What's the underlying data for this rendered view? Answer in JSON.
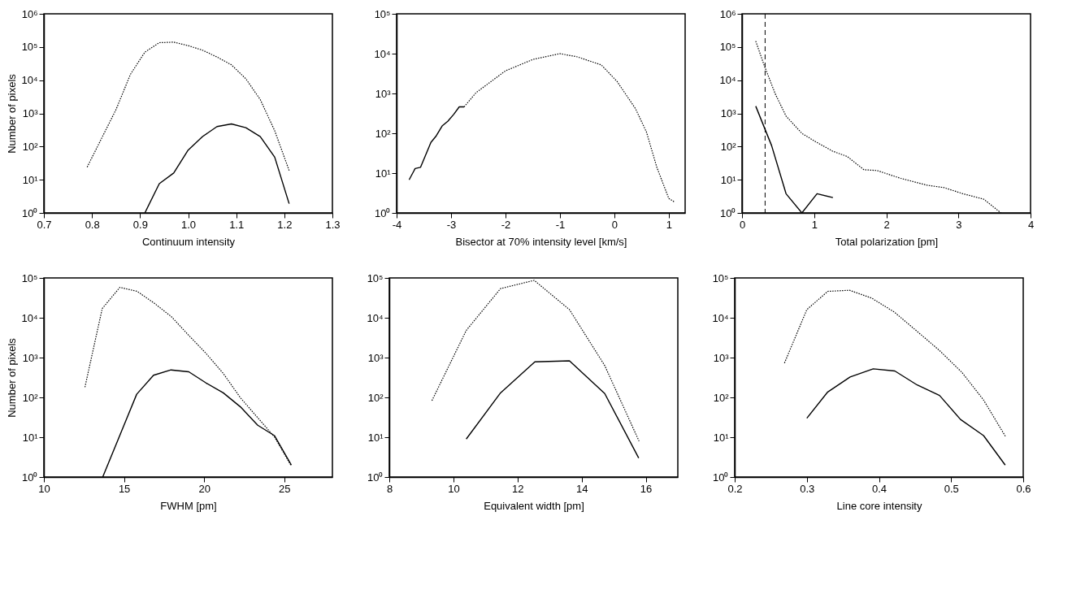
{
  "chart_data": [
    {
      "type": "line",
      "xlabel": "Continuum intensity",
      "ylabel": "Number of pixels",
      "log": "y",
      "xlim": [
        0.7,
        1.3
      ],
      "xticks": [
        0.7,
        0.8,
        0.9,
        {
          "value": 1.0,
          "label": "1.0"
        },
        1.1,
        1.2,
        1.3
      ],
      "ylim": [
        1,
        1000000
      ],
      "yticks": [
        {
          "value": 1,
          "label": "10⁰"
        },
        {
          "value": 10,
          "label": "10¹"
        },
        {
          "value": 100,
          "label": "10²"
        },
        {
          "value": 1000,
          "label": "10³"
        },
        {
          "value": 10000,
          "label": "10⁴"
        },
        {
          "value": 100000,
          "label": "10⁵"
        },
        {
          "value": 1000000,
          "label": "10⁶"
        }
      ],
      "series": [
        {
          "color": "#000000",
          "line_style": "dotted",
          "x": [
            0.79,
            0.85,
            0.88,
            0.91,
            0.94,
            0.97,
            1.0,
            1.03,
            1.06,
            1.09,
            1.12,
            1.15,
            1.18,
            1.21
          ],
          "values": [
            24,
            1300,
            15000,
            70000,
            135000,
            140000,
            110000,
            80000,
            50000,
            29000,
            11000,
            2600,
            300,
            19
          ]
        },
        {
          "color": "#000000",
          "line_style": "solid",
          "x": [
            0.91,
            0.94,
            0.97,
            1.0,
            1.03,
            1.06,
            1.09,
            1.12,
            1.15,
            1.18,
            1.21
          ],
          "values": [
            1,
            7.6,
            16,
            78,
            200,
            400,
            480,
            370,
            200,
            48,
            1.9
          ]
        }
      ]
    },
    {
      "type": "line",
      "xlabel": "Bisector at 70% intensity level [km/s]",
      "log": "y",
      "tick_labels": true,
      "xlim": [
        -4,
        1.3
      ],
      "xticks": [
        -4,
        -3,
        -2,
        -1,
        0,
        1
      ],
      "ylim": [
        1,
        100000
      ],
      "yticks": [
        {
          "value": 1,
          "label": "10⁰"
        },
        {
          "value": 10,
          "label": "10¹"
        },
        {
          "value": 100,
          "label": "10²"
        },
        {
          "value": 1000,
          "label": "10³"
        },
        {
          "value": 10000,
          "label": "10⁴"
        },
        {
          "value": 100000,
          "label": "10⁵"
        }
      ],
      "series": [
        {
          "color": "#000000",
          "line_style": "dotted",
          "x": [
            -2.76,
            -2.54,
            -2.0,
            -1.49,
            -1.0,
            -0.68,
            -0.24,
            0.05,
            0.39,
            0.59,
            0.78,
            1.0,
            1.1
          ],
          "values": [
            460,
            1050,
            3700,
            7200,
            10000,
            8300,
            5200,
            2000,
            410,
            107,
            14,
            2.3,
            1.9
          ]
        },
        {
          "color": "#000000",
          "line_style": "solid",
          "x": [
            -3.77,
            -3.66,
            -3.56,
            -3.37,
            -3.27,
            -3.16,
            -3.06,
            -2.95,
            -2.85,
            -2.76
          ],
          "values": [
            6.8,
            13,
            14,
            59,
            87,
            155,
            200,
            300,
            460,
            460
          ]
        }
      ]
    },
    {
      "type": "line",
      "xlabel": "Total polarization [pm]",
      "log": "y",
      "xlim": [
        0,
        4
      ],
      "xticks": [
        0,
        1,
        2,
        3,
        4
      ],
      "ylim": [
        1,
        1000000
      ],
      "yticks": [
        {
          "value": 1,
          "label": "10⁰"
        },
        {
          "value": 10,
          "label": "10¹"
        },
        {
          "value": 100,
          "label": "10²"
        },
        {
          "value": 1000,
          "label": "10³"
        },
        {
          "value": 10000,
          "label": "10⁴"
        },
        {
          "value": 100000,
          "label": "10⁵"
        },
        {
          "value": 1000000,
          "label": "10⁶"
        }
      ],
      "ref_lines": [
        {
          "axis": "x",
          "value": 0.32,
          "color": "#000000",
          "line_style": "dashed"
        }
      ],
      "series": [
        {
          "color": "#000000",
          "line_style": "dotted",
          "x": [
            0.19,
            0.31,
            0.46,
            0.61,
            0.83,
            1.02,
            1.26,
            1.46,
            1.69,
            1.87,
            2.2,
            2.57,
            2.8,
            3.06,
            3.35,
            3.59
          ],
          "values": [
            150000,
            27000,
            3900,
            830,
            250,
            140,
            72,
            50,
            20,
            19,
            11,
            6.8,
            5.8,
            3.8,
            2.6,
            1
          ]
        },
        {
          "color": "#000000",
          "line_style": "solid",
          "x": [
            0.19,
            0.41,
            0.61,
            0.83,
            1.04,
            1.26
          ],
          "values": [
            1650,
            107,
            3.8,
            1,
            3.8,
            2.9
          ]
        }
      ]
    },
    {
      "type": "line",
      "xlabel": "FWHM [pm]",
      "ylabel": "Number of pixels",
      "log": "y",
      "xlim": [
        10,
        28
      ],
      "xticks": [
        10,
        15,
        20,
        25
      ],
      "ylim": [
        1,
        100000
      ],
      "yticks": [
        {
          "value": 1,
          "label": "10⁰"
        },
        {
          "value": 10,
          "label": "10¹"
        },
        {
          "value": 100,
          "label": "10²"
        },
        {
          "value": 1000,
          "label": "10³"
        },
        {
          "value": 10000,
          "label": "10⁴"
        },
        {
          "value": 100000,
          "label": "10⁵"
        }
      ],
      "series": [
        {
          "color": "#000000",
          "line_style": "dotted",
          "x": [
            12.56,
            13.64,
            14.74,
            15.82,
            16.9,
            17.97,
            19.04,
            20.12,
            21.19,
            22.26,
            23.4,
            24.4,
            25.4
          ],
          "values": [
            180,
            17000,
            58000,
            46000,
            23000,
            10500,
            3600,
            1270,
            400,
            98,
            29,
            10,
            2
          ]
        },
        {
          "color": "#000000",
          "line_style": "solid",
          "x": [
            13.67,
            14.69,
            15.79,
            16.84,
            17.93,
            19.04,
            20.12,
            21.19,
            22.26,
            23.34,
            24.38,
            25.44
          ],
          "values": [
            1,
            10,
            120,
            360,
            490,
            440,
            230,
            130,
            58,
            20,
            11,
            2
          ]
        }
      ]
    },
    {
      "type": "line",
      "xlabel": "Equivalent width [pm]",
      "log": "y",
      "xlim": [
        8,
        17
      ],
      "xticks": [
        8,
        10,
        12,
        14,
        16
      ],
      "ylim": [
        1,
        100000
      ],
      "yticks": [
        {
          "value": 1,
          "label": "10⁰"
        },
        {
          "value": 10,
          "label": "10¹"
        },
        {
          "value": 100,
          "label": "10²"
        },
        {
          "value": 1000,
          "label": "10³"
        },
        {
          "value": 10000,
          "label": "10⁴"
        },
        {
          "value": 100000,
          "label": "10⁵"
        }
      ],
      "series": [
        {
          "color": "#000000",
          "line_style": "dotted",
          "x": [
            9.33,
            10.4,
            11.47,
            12.52,
            13.62,
            14.72,
            15.79
          ],
          "values": [
            83,
            4800,
            54000,
            87000,
            16000,
            630,
            8
          ]
        },
        {
          "color": "#000000",
          "line_style": "solid",
          "x": [
            10.4,
            11.47,
            12.54,
            13.62,
            14.72,
            15.78
          ],
          "values": [
            9,
            130,
            780,
            830,
            125,
            3
          ]
        }
      ]
    },
    {
      "type": "line",
      "xlabel": "Line core intensity",
      "log": "y",
      "xlim": [
        0.2,
        0.6
      ],
      "xticks": [
        0.2,
        0.3,
        0.4,
        0.5,
        0.6
      ],
      "ylim": [
        1,
        100000
      ],
      "yticks": [
        {
          "value": 1,
          "label": "10⁰"
        },
        {
          "value": 10,
          "label": "10¹"
        },
        {
          "value": 100,
          "label": "10²"
        },
        {
          "value": 1000,
          "label": "10³"
        },
        {
          "value": 10000,
          "label": "10⁴"
        },
        {
          "value": 100000,
          "label": "10⁵"
        }
      ],
      "series": [
        {
          "color": "#000000",
          "line_style": "dotted",
          "x": [
            0.269,
            0.3,
            0.329,
            0.359,
            0.39,
            0.421,
            0.452,
            0.484,
            0.515,
            0.545,
            0.576
          ],
          "values": [
            730,
            16000,
            46000,
            49000,
            31000,
            14000,
            4700,
            1500,
            425,
            86,
            10
          ]
        },
        {
          "color": "#000000",
          "line_style": "solid",
          "x": [
            0.3,
            0.329,
            0.36,
            0.392,
            0.422,
            0.453,
            0.484,
            0.513,
            0.545,
            0.575
          ],
          "values": [
            30,
            137,
            325,
            520,
            460,
            205,
            112,
            28,
            11,
            2
          ]
        }
      ]
    }
  ]
}
